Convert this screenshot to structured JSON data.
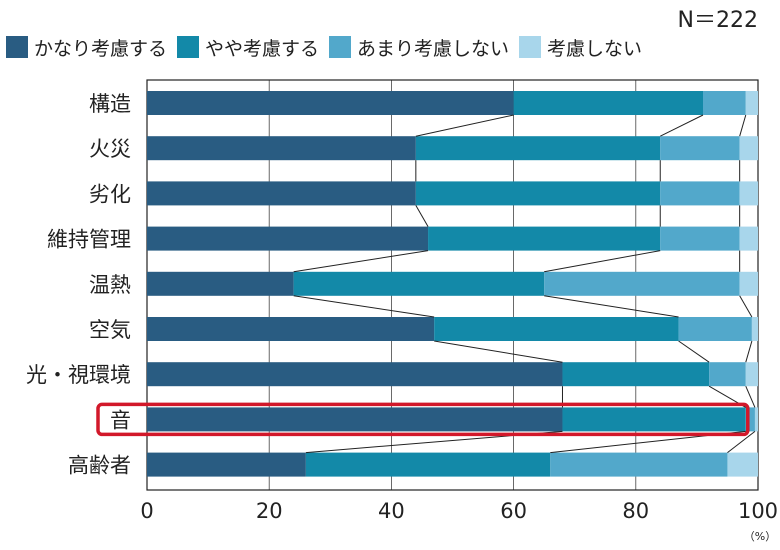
{
  "n_label": "N＝222",
  "colors": {
    "series": [
      "#295c82",
      "#1389a8",
      "#52a8cb",
      "#a8d6eb"
    ],
    "highlight": "#d2182a",
    "connector": "#222222"
  },
  "chart_data": {
    "type": "bar",
    "orientation": "horizontal",
    "stacked": true,
    "categories": [
      "構造",
      "火災",
      "劣化",
      "維持管理",
      "温熱",
      "空気",
      "光・視環境",
      "音",
      "高齢者"
    ],
    "series": [
      {
        "name": "かなり考慮する",
        "values": [
          60,
          44,
          44,
          46,
          24,
          47,
          68,
          68,
          26
        ]
      },
      {
        "name": "やや考慮する",
        "values": [
          31,
          40,
          40,
          38,
          41,
          40,
          24,
          30,
          40
        ]
      },
      {
        "name": "あまり考慮しない",
        "values": [
          7,
          13,
          13,
          13,
          32,
          12,
          6,
          1.5,
          29
        ]
      },
      {
        "name": "考慮しない",
        "values": [
          2,
          3,
          3,
          3,
          3,
          1,
          2,
          0.5,
          5
        ]
      }
    ],
    "xlim": [
      0,
      100
    ],
    "xticks": [
      0,
      20,
      40,
      60,
      80,
      100
    ],
    "x_unit": "（%）",
    "grid": true,
    "legend_position": "top",
    "highlighted_category": "音"
  }
}
